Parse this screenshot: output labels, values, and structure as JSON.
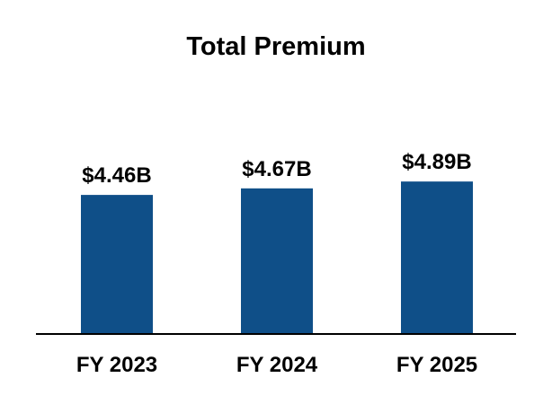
{
  "chart_data": {
    "type": "bar",
    "title": "Total Premium",
    "categories": [
      "FY 2023",
      "FY 2024",
      "FY 2025"
    ],
    "values": [
      4.46,
      4.67,
      4.89
    ],
    "data_labels": [
      "$4.46B",
      "$4.67B",
      "$4.89B"
    ],
    "unit": "B",
    "bar_color": "#0f4f88",
    "axis_color": "#000000",
    "grid": false,
    "legend": "none",
    "ylim": [
      0,
      5
    ]
  }
}
